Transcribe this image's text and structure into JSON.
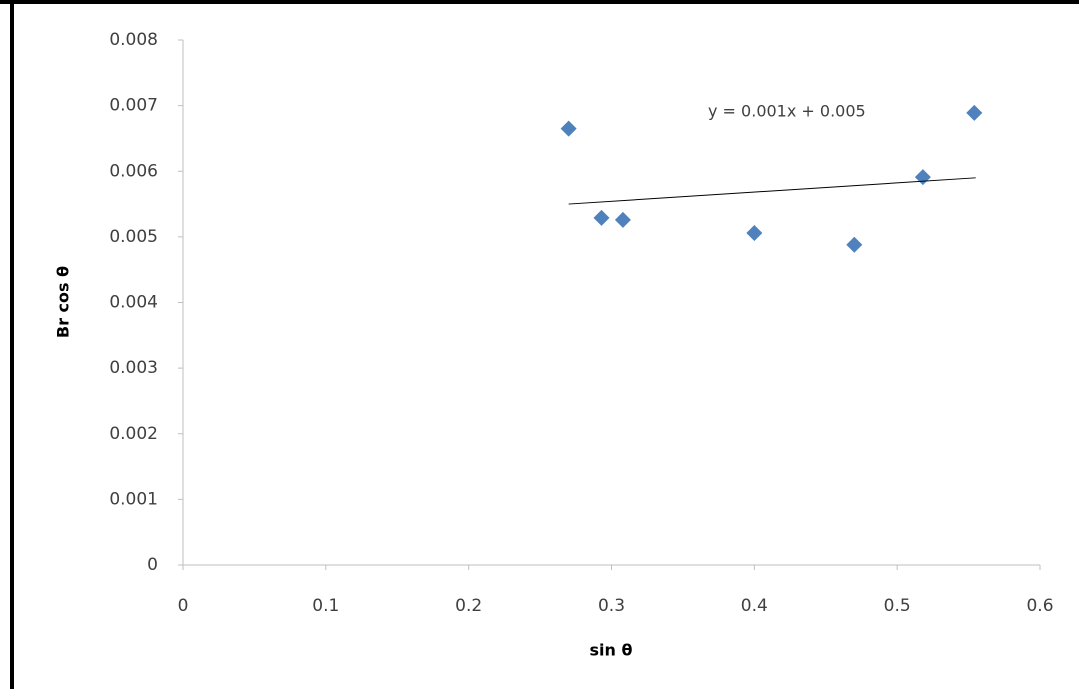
{
  "chart_data": {
    "type": "scatter",
    "x_label": "sin θ",
    "y_label": "Br cos θ",
    "series": [
      {
        "color": "#4f81bd",
        "x": [
          0.27,
          0.293,
          0.308,
          0.4,
          0.47,
          0.518,
          0.554
        ],
        "values": [
          0.00665,
          0.00529,
          0.00526,
          0.00506,
          0.00488,
          0.00591,
          0.00689
        ]
      }
    ],
    "trendline": {
      "label": "y = 0.001x + 0.005",
      "x": [
        0.27,
        0.555
      ],
      "values": [
        0.0055,
        0.0059
      ]
    },
    "xlim": [
      0,
      0.6
    ],
    "xticks": [
      0,
      0.1,
      0.2,
      0.3,
      0.4,
      0.5,
      0.6
    ],
    "ylim": [
      0,
      0.008
    ],
    "yticks": [
      0,
      0.001,
      0.002,
      0.003,
      0.004,
      0.005,
      0.006,
      0.007,
      0.008
    ]
  }
}
